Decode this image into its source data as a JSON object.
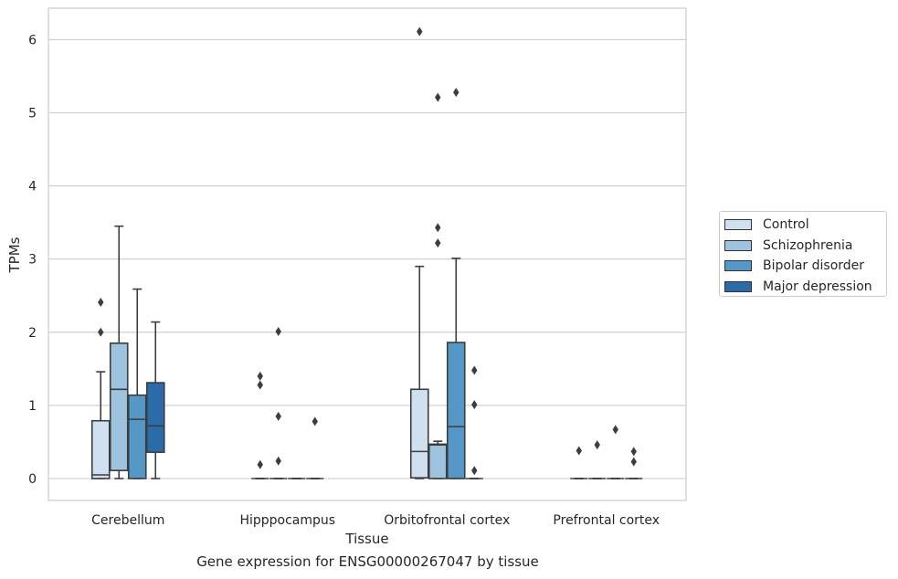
{
  "chart_data": {
    "type": "boxplot",
    "title": "Gene expression for ENSG00000267047 by tissue",
    "xlabel": "Tissue",
    "ylabel": "TPMs",
    "ylim": [
      -0.3,
      6.4
    ],
    "yticks": [
      "0",
      "1",
      "2",
      "3",
      "4",
      "5",
      "6"
    ],
    "grid": "horizontal",
    "legend_position": "right",
    "categories": [
      "Cerebellum",
      "Hipppocampus",
      "Orbitofrontal cortex",
      "Prefrontal cortex"
    ],
    "series": [
      {
        "name": "Control",
        "color": "#cfe0f1",
        "boxes": [
          {
            "whislo": 0,
            "q1": 0,
            "med": 0.05,
            "q3": 0.79,
            "whishi": 1.46,
            "fliers": [
              2.0,
              2.41
            ]
          },
          {
            "whislo": 0,
            "q1": 0,
            "med": 0,
            "q3": 0,
            "whishi": 0,
            "fliers": [
              0.19,
              1.28,
              1.4
            ]
          },
          {
            "whislo": 0,
            "q1": 0.01,
            "med": 0.37,
            "q3": 1.22,
            "whishi": 2.9,
            "fliers": [
              6.11
            ]
          },
          {
            "whislo": 0,
            "q1": 0,
            "med": 0,
            "q3": 0,
            "whishi": 0,
            "fliers": [
              0.38
            ]
          }
        ]
      },
      {
        "name": "Schizophrenia",
        "color": "#9dc3de",
        "boxes": [
          {
            "whislo": 0,
            "q1": 0.11,
            "med": 1.22,
            "q3": 1.85,
            "whishi": 3.45,
            "fliers": []
          },
          {
            "whislo": 0,
            "q1": 0,
            "med": 0,
            "q3": 0,
            "whishi": 0,
            "fliers": [
              0.24,
              0.85,
              2.01
            ]
          },
          {
            "whislo": 0,
            "q1": 0,
            "med": 0.46,
            "q3": 0.47,
            "whishi": 0.51,
            "fliers": [
              3.22,
              3.43,
              5.21
            ]
          },
          {
            "whislo": 0,
            "q1": 0,
            "med": 0,
            "q3": 0,
            "whishi": 0,
            "fliers": [
              0.46
            ]
          }
        ]
      },
      {
        "name": "Bipolar disorder",
        "color": "#5598c8",
        "boxes": [
          {
            "whislo": 0,
            "q1": 0,
            "med": 0.81,
            "q3": 1.14,
            "whishi": 2.59,
            "fliers": []
          },
          {
            "whislo": 0,
            "q1": 0,
            "med": 0,
            "q3": 0,
            "whishi": 0,
            "fliers": []
          },
          {
            "whislo": 0,
            "q1": 0,
            "med": 0.71,
            "q3": 1.86,
            "whishi": 3.01,
            "fliers": [
              5.28
            ]
          },
          {
            "whislo": 0,
            "q1": 0,
            "med": 0,
            "q3": 0,
            "whishi": 0,
            "fliers": [
              0.67
            ]
          }
        ]
      },
      {
        "name": "Major depression",
        "color": "#2b6ba9",
        "boxes": [
          {
            "whislo": 0,
            "q1": 0.36,
            "med": 0.72,
            "q3": 1.31,
            "whishi": 2.14,
            "fliers": []
          },
          {
            "whislo": 0,
            "q1": 0,
            "med": 0,
            "q3": 0,
            "whishi": 0,
            "fliers": [
              0.78
            ]
          },
          {
            "whislo": 0,
            "q1": 0,
            "med": 0,
            "q3": 0,
            "whishi": 0,
            "fliers": [
              0.11,
              1.01,
              1.48
            ]
          },
          {
            "whislo": 0,
            "q1": 0,
            "med": 0,
            "q3": 0,
            "whishi": 0,
            "fliers": [
              0.37,
              0.23
            ]
          }
        ]
      }
    ]
  }
}
